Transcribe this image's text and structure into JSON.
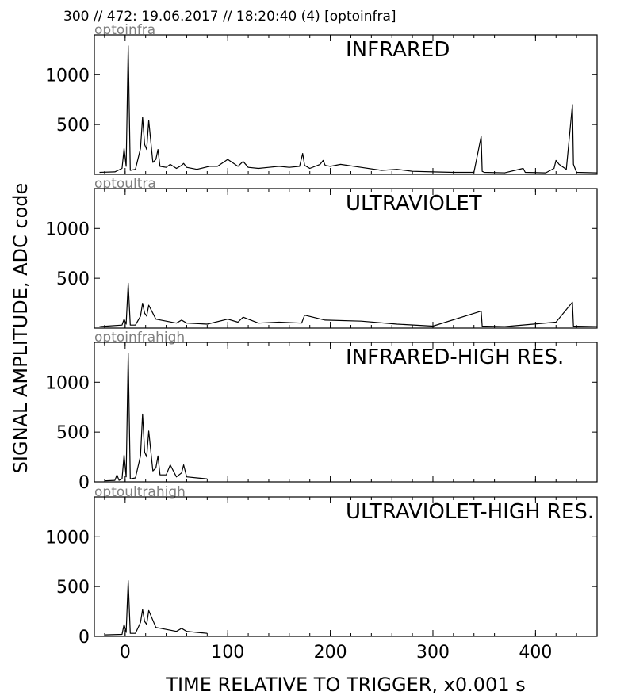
{
  "header": "300 // 472:   19.06.2017 // 18:20:40 (4)  [optoinfra]",
  "chart_data": {
    "type": "line",
    "xlabel": "TIME RELATIVE TO TRIGGER,   x0.001 s",
    "ylabel": "SIGNAL AMPLITUDE,  ADC code",
    "xlim": [
      -30,
      460
    ],
    "ylim": [
      0,
      1400
    ],
    "x_ticks": [
      0,
      100,
      200,
      300,
      400
    ],
    "grid": false,
    "panels": [
      {
        "source": "optoinfra",
        "title": "INFRARED",
        "y_tick_labels": [
          "500",
          "1000"
        ],
        "series": {
          "x": [
            -25,
            -10,
            -3,
            -1,
            1,
            3,
            5,
            10,
            15,
            17,
            19,
            21,
            23,
            27,
            30,
            32,
            34,
            40,
            44,
            50,
            55,
            57,
            60,
            70,
            82,
            90,
            100,
            103,
            110,
            115,
            120,
            130,
            140,
            150,
            160,
            170,
            173,
            175,
            180,
            190,
            193,
            195,
            200,
            210,
            230,
            250,
            265,
            280,
            300,
            320,
            340,
            347,
            348,
            350,
            370,
            388,
            390,
            410,
            418,
            420,
            423,
            430,
            436,
            437,
            440,
            460
          ],
          "y": [
            20,
            25,
            60,
            260,
            80,
            1290,
            40,
            50,
            260,
            575,
            300,
            250,
            540,
            120,
            150,
            250,
            80,
            70,
            100,
            60,
            90,
            110,
            70,
            50,
            80,
            80,
            150,
            130,
            80,
            130,
            70,
            60,
            70,
            80,
            70,
            80,
            210,
            90,
            60,
            100,
            140,
            90,
            80,
            100,
            70,
            40,
            50,
            30,
            25,
            20,
            20,
            380,
            30,
            20,
            15,
            60,
            20,
            15,
            60,
            140,
            100,
            50,
            700,
            100,
            20,
            15
          ]
        }
      },
      {
        "source": "optoultra",
        "title": "ULTRAVIOLET",
        "y_tick_labels": [
          "500",
          "1000"
        ],
        "series": {
          "x": [
            -25,
            -3,
            -1,
            1,
            3,
            5,
            10,
            15,
            17,
            19,
            21,
            23,
            30,
            40,
            50,
            55,
            60,
            80,
            100,
            110,
            115,
            130,
            150,
            172,
            175,
            195,
            230,
            265,
            300,
            347,
            348,
            370,
            420,
            436,
            437,
            460
          ],
          "y": [
            15,
            30,
            90,
            40,
            450,
            30,
            30,
            120,
            250,
            150,
            120,
            230,
            90,
            70,
            50,
            80,
            50,
            40,
            90,
            60,
            110,
            50,
            60,
            50,
            130,
            80,
            70,
            40,
            20,
            170,
            20,
            15,
            60,
            260,
            20,
            15
          ]
        }
      },
      {
        "source": "optoinfrahigh",
        "title": "INFRARED-HIGH RES.",
        "y_tick_labels": [
          "0",
          "500",
          "1000"
        ],
        "series": {
          "x": [
            -20,
            -10,
            -8,
            -6,
            -3,
            -1,
            1,
            3,
            5,
            10,
            15,
            17,
            19,
            21,
            23,
            27,
            30,
            32,
            34,
            40,
            44,
            50,
            55,
            57,
            60,
            70,
            80
          ],
          "y": [
            10,
            15,
            70,
            15,
            30,
            270,
            50,
            1290,
            30,
            40,
            260,
            680,
            300,
            250,
            510,
            110,
            140,
            260,
            70,
            70,
            170,
            50,
            90,
            170,
            50,
            40,
            30
          ]
        }
      },
      {
        "source": "optoultrahigh",
        "title": "ULTRAVIOLET-HIGH RES.",
        "y_tick_labels": [
          "0",
          "500",
          "1000"
        ],
        "series": {
          "x": [
            -20,
            -3,
            -1,
            1,
            3,
            5,
            10,
            15,
            17,
            19,
            21,
            23,
            30,
            40,
            50,
            55,
            60,
            70,
            80
          ],
          "y": [
            15,
            20,
            120,
            40,
            560,
            30,
            30,
            140,
            270,
            150,
            120,
            260,
            90,
            70,
            50,
            80,
            50,
            40,
            30
          ]
        }
      }
    ]
  }
}
